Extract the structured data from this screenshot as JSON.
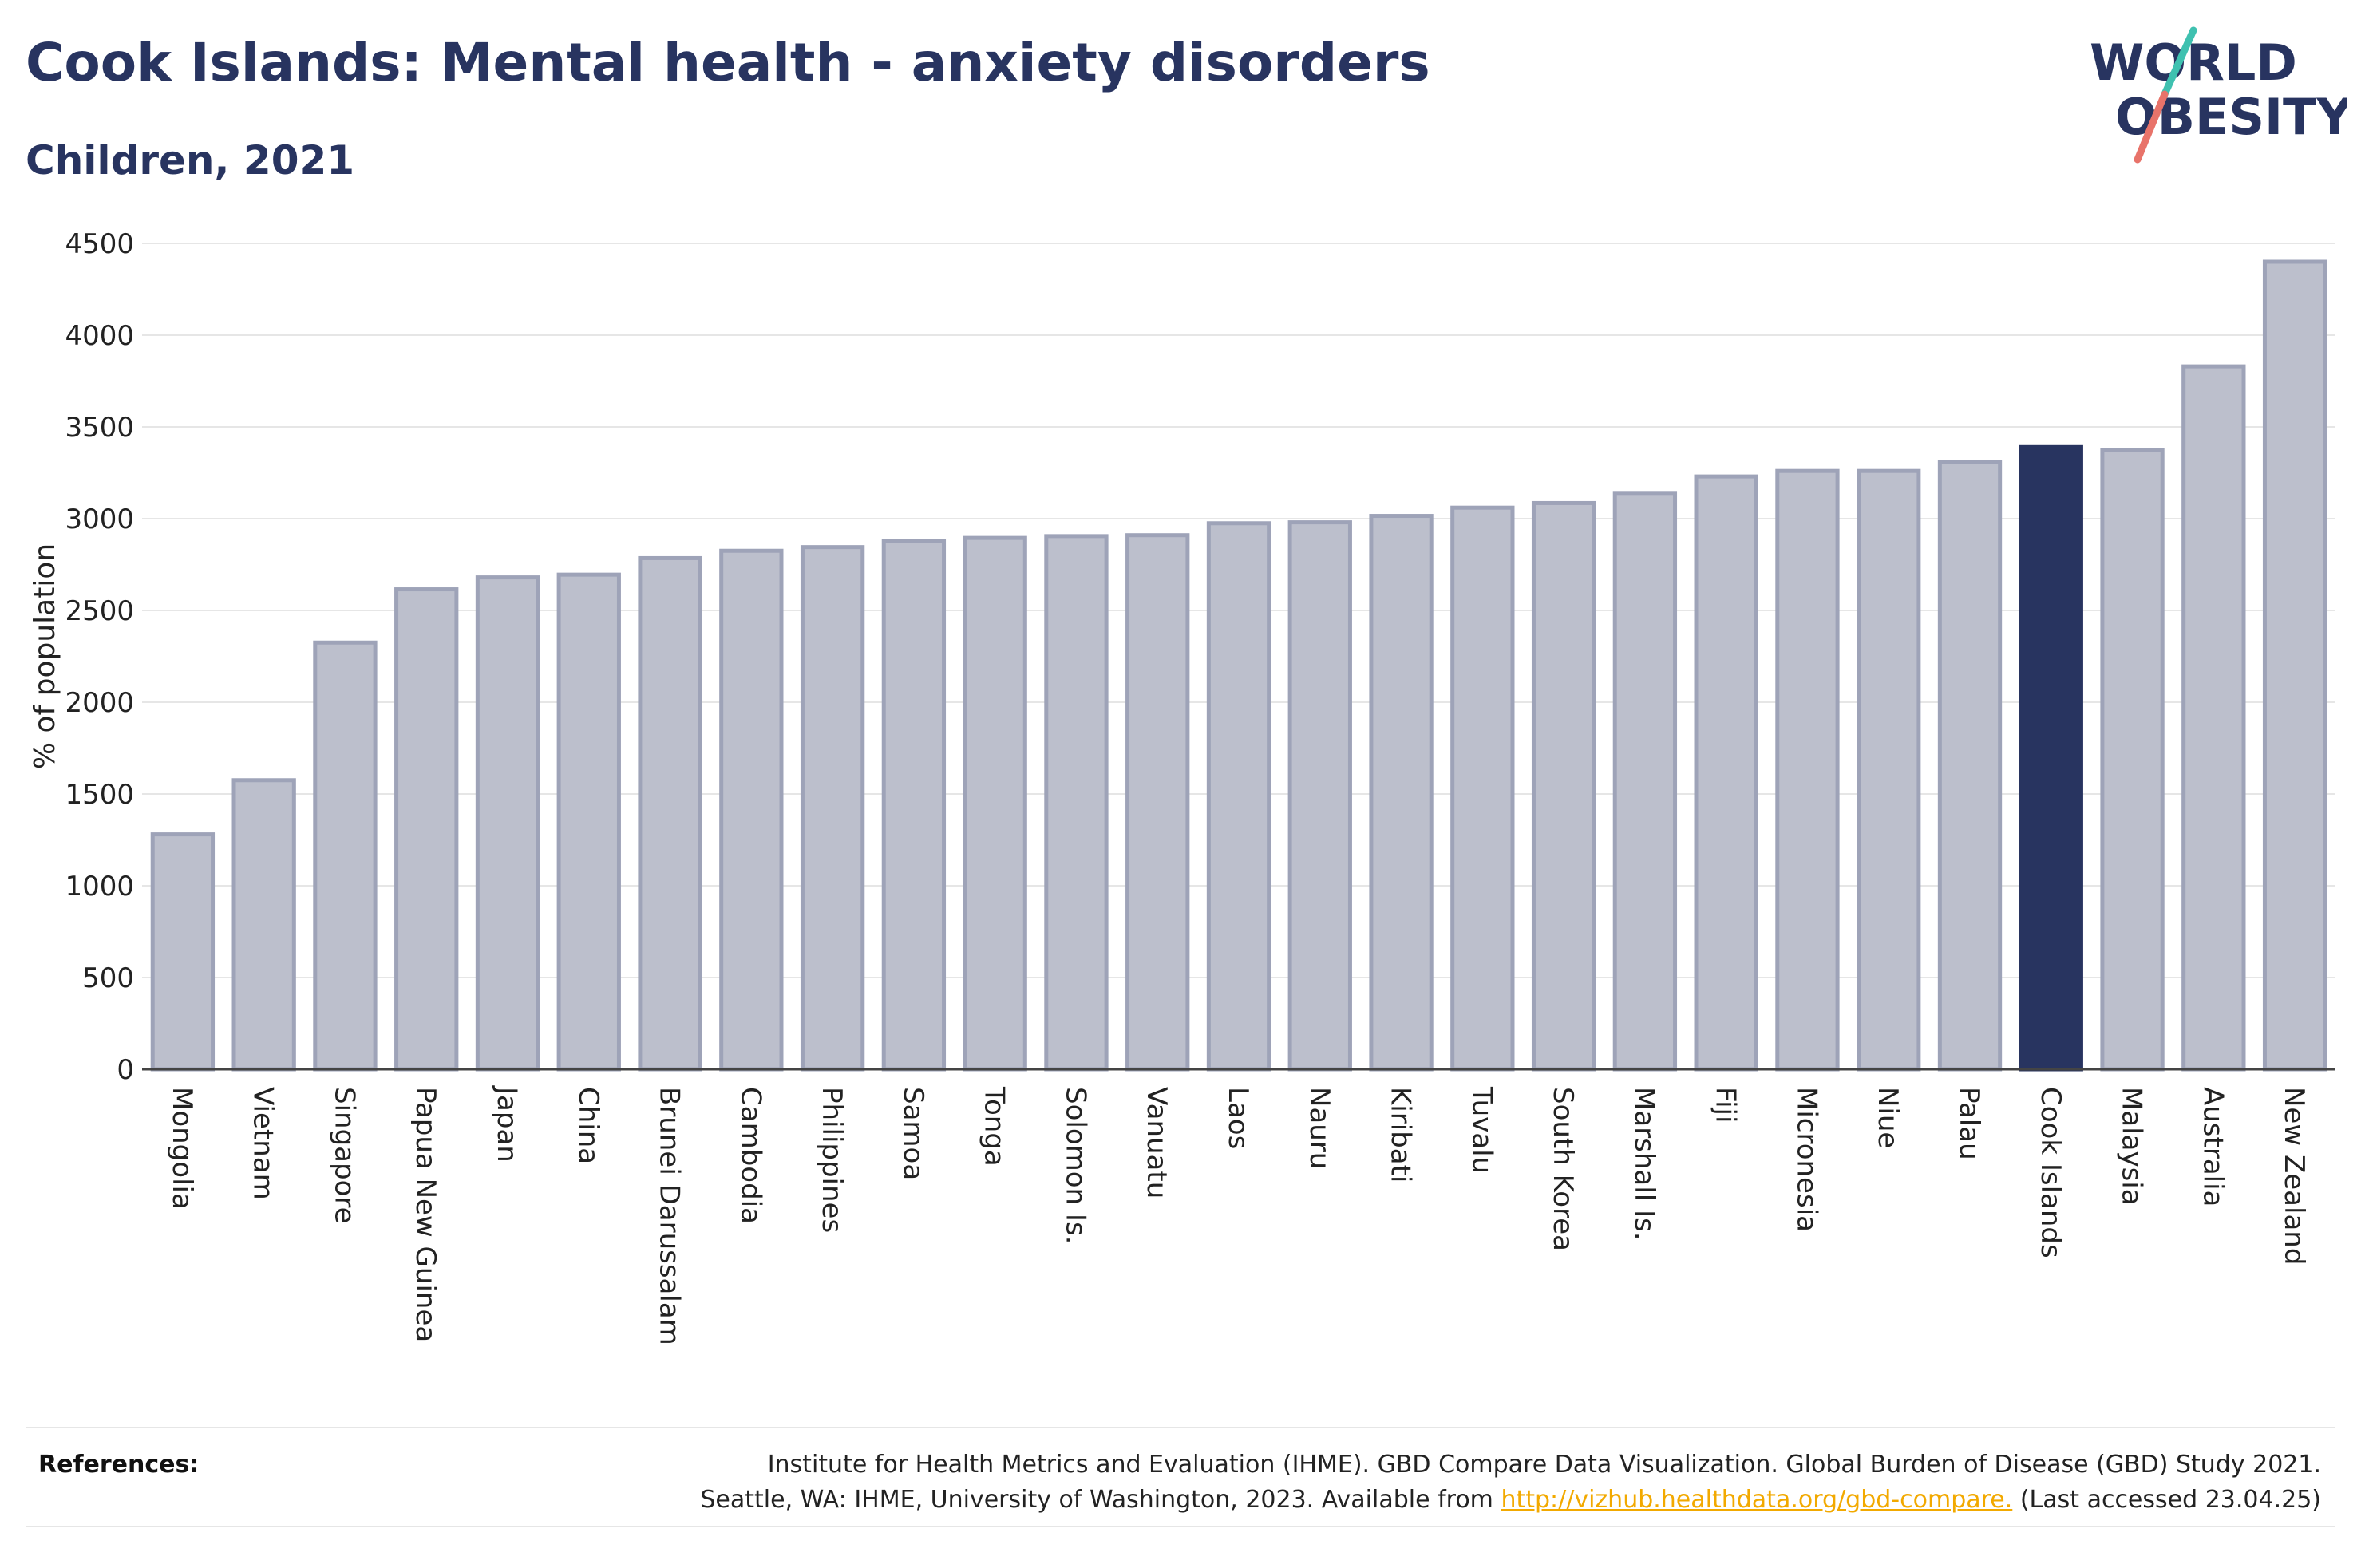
{
  "header": {
    "title": "Cook Islands: Mental health - anxiety disorders",
    "subtitle": "Children, 2021"
  },
  "logo": {
    "line1": "WORLD",
    "line2": "OBESITY"
  },
  "colors": {
    "title": "#283460",
    "bar": "#bcbfcc",
    "bar_border": "#9ea3b8",
    "highlight": "#283460",
    "link": "#f2a900",
    "logo_teal": "#3fc1b0",
    "logo_coral": "#e8736a"
  },
  "chart_data": {
    "type": "bar",
    "ylabel": "% of population",
    "ylim": [
      0,
      4500
    ],
    "yticks": [
      0,
      500,
      1000,
      1500,
      2000,
      2500,
      3000,
      3500,
      4000,
      4500
    ],
    "grid": true,
    "highlight": "Cook Islands",
    "categories": [
      "Mongolia",
      "Vietnam",
      "Singapore",
      "Papua New Guinea",
      "Japan",
      "China",
      "Brunei Darussalam",
      "Cambodia",
      "Philippines",
      "Samoa",
      "Tonga",
      "Solomon Is.",
      "Vanuatu",
      "Laos",
      "Nauru",
      "Kiribati",
      "Tuvalu",
      "South Korea",
      "Marshall Is.",
      "Fiji",
      "Micronesia",
      "Niue",
      "Palau",
      "Cook Islands",
      "Malaysia",
      "Australia",
      "New Zealand"
    ],
    "values": [
      1280,
      1575,
      2325,
      2615,
      2680,
      2695,
      2785,
      2825,
      2845,
      2880,
      2895,
      2905,
      2910,
      2975,
      2980,
      3015,
      3060,
      3085,
      3140,
      3230,
      3260,
      3260,
      3310,
      3390,
      3375,
      3830,
      4400
    ]
  },
  "references": {
    "label": "References:",
    "line1": "Institute for Health Metrics and Evaluation (IHME). GBD Compare Data Visualization. Global Burden of Disease (GBD) Study 2021.",
    "line2_prefix": "Seattle, WA: IHME, University of Washington, 2023. Available from ",
    "link": "http://vizhub.healthdata.org/gbd-compare.",
    "line2_suffix": " (Last accessed 23.04.25)"
  }
}
